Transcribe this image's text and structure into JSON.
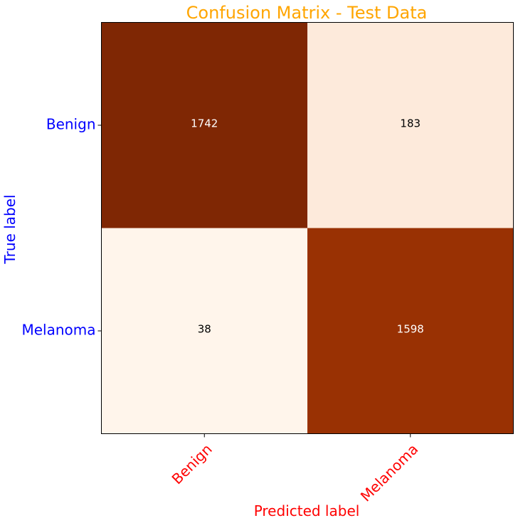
{
  "chart_data": {
    "type": "heatmap",
    "title": "Confusion Matrix - Test Data",
    "xlabel": "Predicted label",
    "ylabel": "True label",
    "x_categories": [
      "Benign",
      "Melanoma"
    ],
    "y_categories": [
      "Benign",
      "Melanoma"
    ],
    "values": [
      [
        1742,
        183
      ],
      [
        38,
        1598
      ]
    ],
    "colormap": "Oranges",
    "colors": {
      "title": "#ffa500",
      "xlabel": "#ff0000",
      "x_ticks": "#ff0000",
      "ylabel": "#0000ff",
      "y_ticks": "#0000ff",
      "cell_fills": [
        [
          "#7f2704",
          "#fdeadb"
        ],
        [
          "#fff5eb",
          "#993103"
        ]
      ],
      "cell_text": [
        [
          "#ffffff",
          "#000000"
        ],
        [
          "#000000",
          "#ffffff"
        ]
      ]
    },
    "grid": false,
    "colorbar": false
  }
}
